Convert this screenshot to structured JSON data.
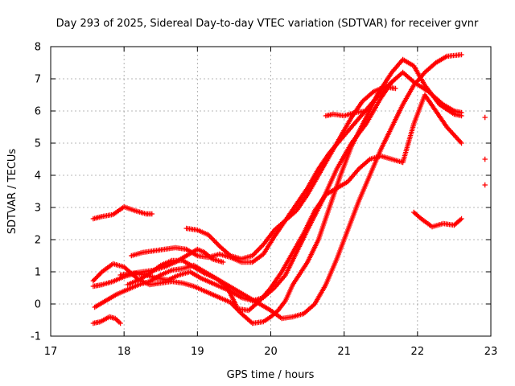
{
  "chart_data": {
    "type": "scatter",
    "title": "Day 293 of 2025, Sidereal Day-to-day VTEC variation (SDTVAR) for receiver gvnr",
    "xlabel": "GPS time / hours",
    "ylabel": "SDTVAR / TECUs",
    "xlim": [
      17,
      23
    ],
    "ylim": [
      -1,
      8
    ],
    "xticks": [
      17,
      18,
      19,
      20,
      21,
      22,
      23
    ],
    "yticks": [
      -1,
      0,
      1,
      2,
      3,
      4,
      5,
      6,
      7,
      8
    ],
    "grid": true,
    "marker": "plus",
    "color": "#ff0000",
    "series": [
      {
        "name": "track-01",
        "x": [
          17.58,
          17.7,
          17.85,
          18.0,
          18.15,
          18.3,
          18.38
        ],
        "y": [
          2.65,
          2.72,
          2.78,
          3.02,
          2.9,
          2.8,
          2.8
        ]
      },
      {
        "name": "track-02",
        "x": [
          17.58,
          17.68,
          17.8,
          17.88,
          17.95
        ],
        "y": [
          -0.6,
          -0.55,
          -0.4,
          -0.45,
          -0.6
        ]
      },
      {
        "name": "track-03",
        "x": [
          17.58,
          17.7,
          17.85,
          18.0,
          18.1,
          18.2,
          18.35,
          18.5,
          18.65,
          18.8,
          18.95,
          19.1,
          19.3,
          19.45,
          19.6,
          19.75,
          19.9,
          20.0,
          20.1,
          20.2,
          20.3,
          20.5,
          20.65,
          20.8,
          20.95,
          21.1,
          21.3,
          21.45,
          21.65,
          21.8,
          21.95,
          22.1,
          22.3,
          22.5,
          22.6
        ],
        "y": [
          0.72,
          1.0,
          1.25,
          1.15,
          0.95,
          0.75,
          0.6,
          0.65,
          0.7,
          0.65,
          0.55,
          0.4,
          0.2,
          0.05,
          -0.3,
          -0.6,
          -0.55,
          -0.4,
          -0.2,
          0.1,
          0.6,
          1.3,
          2.0,
          3.0,
          4.0,
          4.9,
          5.8,
          6.5,
          7.2,
          7.6,
          7.4,
          6.8,
          6.2,
          5.9,
          5.85
        ]
      },
      {
        "name": "track-04",
        "x": [
          17.58,
          17.7,
          17.85,
          18.0,
          18.15,
          18.3,
          18.45,
          18.6,
          18.75,
          18.9,
          19.05,
          19.25,
          19.45,
          19.6,
          19.75,
          19.9,
          20.05,
          20.2,
          20.35,
          20.5,
          20.7,
          20.9,
          21.1,
          21.3,
          21.5,
          21.65,
          21.8,
          21.95,
          22.15,
          22.35,
          22.5,
          22.6
        ],
        "y": [
          0.55,
          0.6,
          0.7,
          0.85,
          0.95,
          0.9,
          0.8,
          0.75,
          0.9,
          1.0,
          0.8,
          0.6,
          0.4,
          0.2,
          0.1,
          0.2,
          0.5,
          0.9,
          1.6,
          2.3,
          3.2,
          4.2,
          5.0,
          5.6,
          6.4,
          6.9,
          7.2,
          6.9,
          6.6,
          6.2,
          6.0,
          5.95
        ]
      },
      {
        "name": "track-05",
        "x": [
          17.6,
          17.75,
          17.9,
          18.05,
          18.2,
          18.35,
          18.5,
          18.65,
          18.8,
          18.95,
          19.1,
          19.25,
          19.4,
          19.55,
          19.7,
          19.85,
          20.0,
          20.15,
          20.3,
          20.45,
          20.6,
          20.75,
          20.9,
          21.05,
          21.2,
          21.35,
          21.5,
          21.65,
          21.8,
          21.95,
          22.1,
          22.25,
          22.4,
          22.6
        ],
        "y": [
          -0.1,
          0.1,
          0.3,
          0.45,
          0.6,
          0.7,
          0.9,
          1.05,
          1.1,
          1.2,
          1.0,
          0.8,
          0.6,
          0.4,
          0.2,
          0.0,
          -0.2,
          -0.45,
          -0.4,
          -0.3,
          0.0,
          0.6,
          1.4,
          2.3,
          3.2,
          4.0,
          4.8,
          5.5,
          6.2,
          6.8,
          7.2,
          7.5,
          7.7,
          7.75
        ]
      },
      {
        "name": "track-06",
        "x": [
          18.05,
          18.2,
          18.35,
          18.5,
          18.65,
          18.8,
          18.95,
          19.1,
          19.25,
          19.4,
          19.55,
          19.7,
          19.85,
          20.0,
          20.15,
          20.3,
          20.45,
          20.6,
          20.75,
          20.9,
          21.05,
          21.2,
          21.35,
          21.5,
          21.65,
          21.8,
          21.95,
          22.1,
          22.25,
          22.4,
          22.6
        ],
        "y": [
          0.6,
          0.75,
          0.95,
          1.2,
          1.35,
          1.35,
          1.15,
          0.95,
          0.8,
          0.55,
          -0.15,
          -0.2,
          0.1,
          0.5,
          1.0,
          1.6,
          2.2,
          2.9,
          3.4,
          3.6,
          3.8,
          4.2,
          4.5,
          4.6,
          4.5,
          4.4,
          5.6,
          6.5,
          6.0,
          5.5,
          5.0
        ]
      },
      {
        "name": "track-07",
        "x": [
          18.1,
          18.25,
          18.4,
          18.55,
          18.7,
          18.85,
          19.0,
          19.15,
          19.3,
          19.45,
          19.6,
          19.75,
          19.9,
          20.05,
          20.2,
          20.35,
          20.5,
          20.65,
          20.8,
          20.95,
          21.1,
          21.25,
          21.4,
          21.55,
          21.7
        ],
        "y": [
          1.5,
          1.6,
          1.65,
          1.7,
          1.75,
          1.7,
          1.5,
          1.45,
          1.55,
          1.45,
          1.3,
          1.3,
          1.55,
          2.1,
          2.6,
          3.1,
          3.6,
          4.2,
          4.7,
          5.1,
          5.5,
          5.9,
          6.3,
          6.7,
          7.0
        ]
      },
      {
        "name": "track-08",
        "x": [
          18.85,
          19.0,
          19.15,
          19.3,
          19.45,
          19.6,
          19.75,
          19.9,
          20.05,
          20.2,
          20.35,
          20.5,
          20.65,
          20.8,
          20.95,
          21.1,
          21.25,
          21.4,
          21.55,
          21.7
        ],
        "y": [
          2.35,
          2.3,
          2.15,
          1.8,
          1.5,
          1.4,
          1.5,
          1.85,
          2.3,
          2.6,
          2.9,
          3.4,
          4.0,
          4.6,
          5.2,
          5.8,
          6.3,
          6.6,
          6.75,
          6.7
        ]
      },
      {
        "name": "track-09",
        "x": [
          17.95,
          18.1,
          18.25,
          18.4,
          18.55,
          18.7,
          18.85,
          19.0,
          19.1,
          19.2,
          19.35
        ],
        "y": [
          0.9,
          0.95,
          1.0,
          1.05,
          1.15,
          1.3,
          1.5,
          1.7,
          1.6,
          1.4,
          1.3
        ]
      },
      {
        "name": "track-10",
        "x": [
          20.75,
          20.85,
          21.0,
          21.15,
          21.3
        ],
        "y": [
          5.85,
          5.9,
          5.85,
          5.95,
          6.0
        ]
      },
      {
        "name": "track-11",
        "x": [
          21.95,
          22.05,
          22.2,
          22.35,
          22.5,
          22.6
        ],
        "y": [
          2.85,
          2.65,
          2.4,
          2.5,
          2.45,
          2.65
        ]
      },
      {
        "name": "track-12",
        "x": [
          22.92
        ],
        "y": [
          5.8
        ]
      },
      {
        "name": "track-13",
        "x": [
          22.92
        ],
        "y": [
          4.5
        ]
      },
      {
        "name": "track-14",
        "x": [
          22.92
        ],
        "y": [
          3.7
        ]
      }
    ]
  }
}
